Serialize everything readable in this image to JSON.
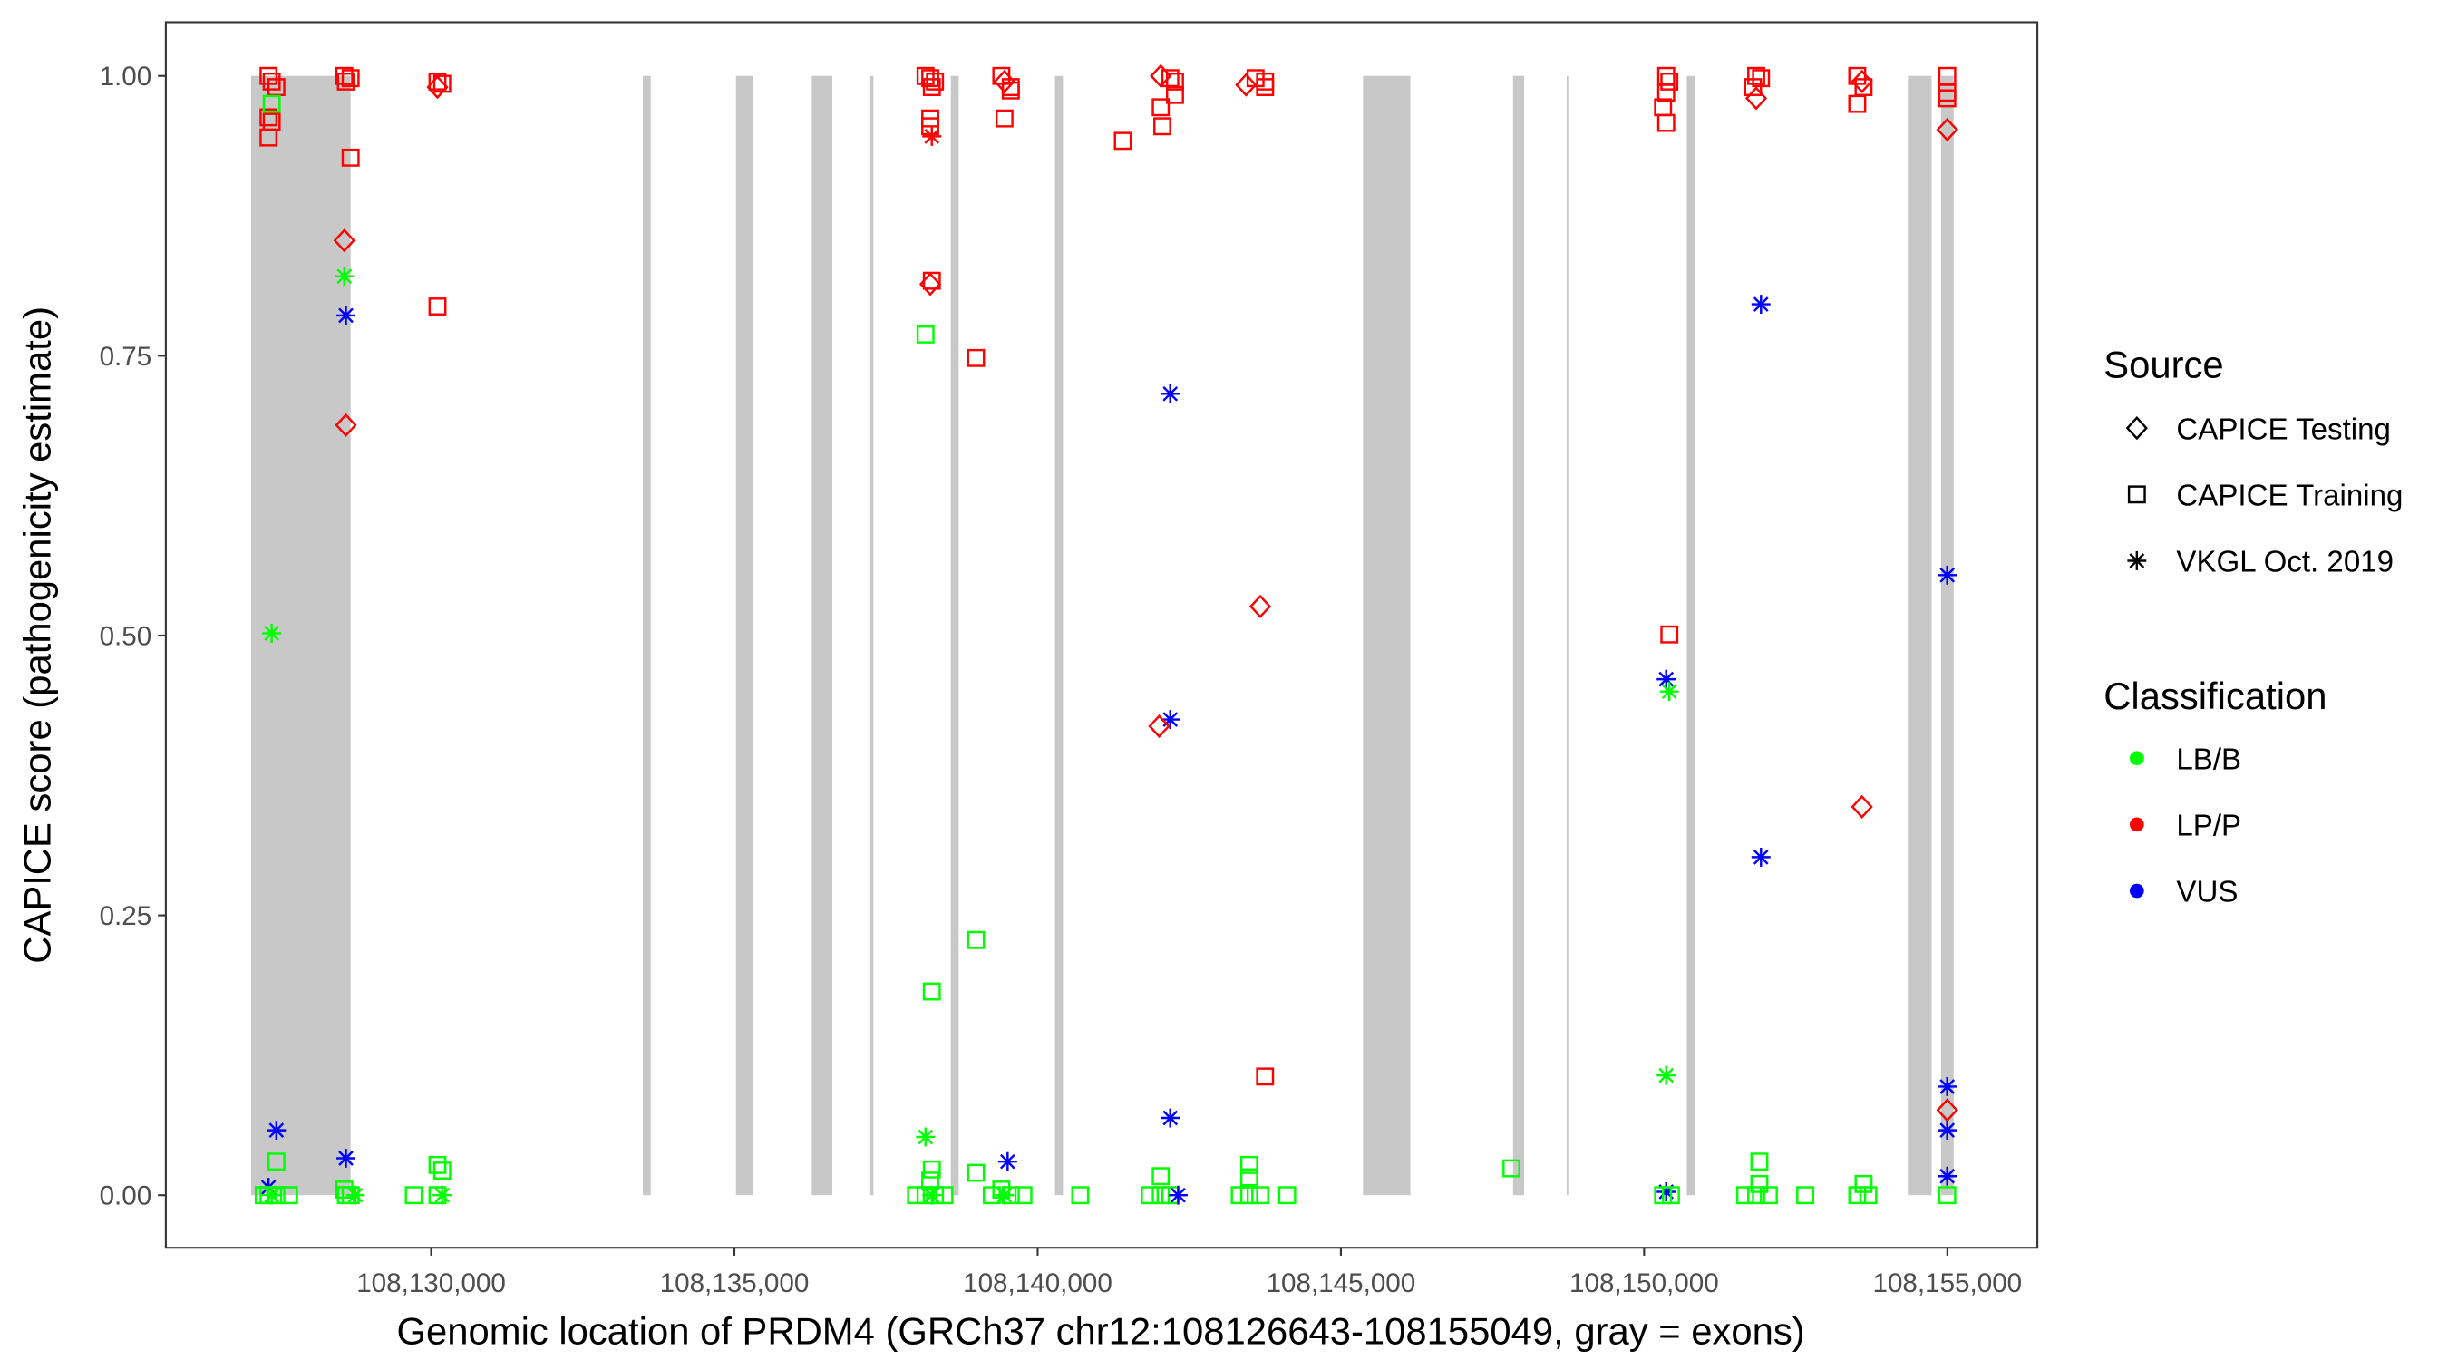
{
  "chart_data": {
    "type": "scatter",
    "xlabel": "Genomic location of PRDM4 (GRCh37 chr12:108126643-108155049, gray = exons)",
    "ylabel": "CAPICE score (pathogenicity estimate)",
    "xlim": [
      108125625,
      108156484
    ],
    "ylim": [
      -0.047,
      1.048
    ],
    "x_ticks": [
      108130000,
      108135000,
      108140000,
      108145000,
      108150000,
      108155000
    ],
    "x_tick_labels": [
      "108,130,000",
      "108,135,000",
      "108,140,000",
      "108,145,000",
      "108,150,000",
      "108,155,000"
    ],
    "y_ticks": [
      0,
      0.25,
      0.5,
      0.75,
      1.0
    ],
    "y_tick_labels": [
      "0.00",
      "0.25",
      "0.50",
      "0.75",
      "1.00"
    ],
    "grid": false,
    "exons": [
      [
        108127031,
        108128672
      ],
      [
        108133490,
        108133620
      ],
      [
        108135026,
        108135313
      ],
      [
        108136276,
        108136615
      ],
      [
        108137240,
        108137292
      ],
      [
        108138568,
        108138698
      ],
      [
        108140286,
        108140417
      ],
      [
        108145365,
        108146146
      ],
      [
        108147839,
        108148021
      ],
      [
        108148724,
        108148750
      ],
      [
        108150703,
        108150833
      ],
      [
        108154349,
        108154740
      ],
      [
        108154896,
        108155104
      ]
    ],
    "exon_color": "#c8c8c8",
    "legend_position": "right",
    "sources": [
      {
        "name": "CAPICE Testing",
        "shape": "diamond"
      },
      {
        "name": "CAPICE Training",
        "shape": "square"
      },
      {
        "name": "VKGL Oct. 2019",
        "shape": "asterisk"
      }
    ],
    "classes": [
      {
        "name": "LB/B",
        "color": "#00ff00"
      },
      {
        "name": "LP/P",
        "color": "#ff0000"
      },
      {
        "name": "VUS",
        "color": "#0000ff"
      }
    ],
    "legend_source_title": "Source",
    "legend_class_title": "Classification",
    "point_fields": [
      "position",
      "score",
      "source_index",
      "class_index"
    ],
    "points": [
      [
        108127318,
        1.0,
        1,
        1
      ],
      [
        108127370,
        0.995,
        1,
        1
      ],
      [
        108127448,
        0.99,
        1,
        1
      ],
      [
        108127318,
        0.963,
        1,
        1
      ],
      [
        108127370,
        0.959,
        1,
        1
      ],
      [
        108127318,
        0.945,
        1,
        1
      ],
      [
        108127370,
        0.975,
        1,
        0
      ],
      [
        108127370,
        0.502,
        2,
        0
      ],
      [
        108127448,
        0.058,
        2,
        2
      ],
      [
        108127448,
        0.03,
        1,
        0
      ],
      [
        108127318,
        0.007,
        2,
        2
      ],
      [
        108127240,
        0.0,
        1,
        0
      ],
      [
        108127318,
        0.0,
        1,
        0
      ],
      [
        108127448,
        0.0,
        1,
        0
      ],
      [
        108127656,
        0.0,
        1,
        0
      ],
      [
        108127370,
        0.0,
        2,
        0
      ],
      [
        108128568,
        1.0,
        1,
        1
      ],
      [
        108128594,
        0.995,
        1,
        1
      ],
      [
        108128672,
        0.998,
        1,
        1
      ],
      [
        108128672,
        0.927,
        1,
        1
      ],
      [
        108128568,
        0.853,
        0,
        1
      ],
      [
        108128568,
        0.821,
        2,
        0
      ],
      [
        108128594,
        0.786,
        2,
        2
      ],
      [
        108128594,
        0.688,
        0,
        1
      ],
      [
        108128594,
        0.033,
        2,
        2
      ],
      [
        108128568,
        0.005,
        1,
        0
      ],
      [
        108128594,
        0.0,
        1,
        0
      ],
      [
        108128672,
        0.0,
        1,
        0
      ],
      [
        108128750,
        0.0,
        2,
        0
      ],
      [
        108130104,
        0.995,
        1,
        1
      ],
      [
        108130104,
        0.99,
        0,
        1
      ],
      [
        108130182,
        0.993,
        1,
        1
      ],
      [
        108130104,
        0.794,
        1,
        1
      ],
      [
        108130104,
        0.027,
        1,
        0
      ],
      [
        108130182,
        0.022,
        1,
        0
      ],
      [
        108129714,
        0.0,
        1,
        0
      ],
      [
        108130104,
        0.0,
        1,
        0
      ],
      [
        108130182,
        0.0,
        2,
        0
      ],
      [
        108138151,
        1.0,
        1,
        1
      ],
      [
        108138229,
        0.998,
        1,
        1
      ],
      [
        108138307,
        0.995,
        1,
        1
      ],
      [
        108138255,
        0.99,
        1,
        1
      ],
      [
        108138229,
        0.962,
        1,
        1
      ],
      [
        108138229,
        0.955,
        1,
        1
      ],
      [
        108138255,
        0.946,
        2,
        1
      ],
      [
        108138229,
        0.814,
        0,
        1
      ],
      [
        108138255,
        0.817,
        1,
        1
      ],
      [
        108138151,
        0.769,
        1,
        0
      ],
      [
        108138255,
        0.182,
        1,
        0
      ],
      [
        108138151,
        0.052,
        2,
        0
      ],
      [
        108138255,
        0.023,
        1,
        0
      ],
      [
        108138229,
        0.013,
        1,
        0
      ],
      [
        108137994,
        0.0,
        1,
        0
      ],
      [
        108138151,
        0.0,
        1,
        0
      ],
      [
        108138255,
        0.0,
        2,
        0
      ],
      [
        108138463,
        0.0,
        1,
        0
      ],
      [
        108138307,
        0.0,
        1,
        0
      ],
      [
        108138984,
        0.748,
        1,
        1
      ],
      [
        108138984,
        0.228,
        1,
        0
      ],
      [
        108138984,
        0.02,
        1,
        0
      ],
      [
        108139401,
        1.0,
        1,
        1
      ],
      [
        108139453,
        0.995,
        0,
        1
      ],
      [
        108139557,
        0.99,
        1,
        1
      ],
      [
        108139557,
        0.987,
        1,
        1
      ],
      [
        108139453,
        0.962,
        1,
        1
      ],
      [
        108139505,
        0.03,
        2,
        2
      ],
      [
        108139401,
        0.005,
        1,
        0
      ],
      [
        108139245,
        0.0,
        1,
        0
      ],
      [
        108139453,
        0.0,
        2,
        0
      ],
      [
        108139557,
        0.0,
        1,
        0
      ],
      [
        108139765,
        0.0,
        1,
        0
      ],
      [
        108140702,
        0.0,
        1,
        0
      ],
      [
        108141405,
        0.942,
        1,
        1
      ],
      [
        108142030,
        1.0,
        0,
        1
      ],
      [
        108142187,
        0.998,
        1,
        1
      ],
      [
        108142265,
        0.995,
        1,
        1
      ],
      [
        108142265,
        0.983,
        1,
        1
      ],
      [
        108142030,
        0.972,
        1,
        1
      ],
      [
        108142056,
        0.955,
        1,
        1
      ],
      [
        108142187,
        0.716,
        2,
        2
      ],
      [
        108142187,
        0.425,
        2,
        2
      ],
      [
        108142004,
        0.419,
        0,
        1
      ],
      [
        108142187,
        0.069,
        2,
        2
      ],
      [
        108142030,
        0.017,
        1,
        0
      ],
      [
        108141848,
        0.0,
        1,
        0
      ],
      [
        108142030,
        0.0,
        1,
        0
      ],
      [
        108142187,
        0.0,
        1,
        0
      ],
      [
        108142317,
        0.0,
        2,
        2
      ],
      [
        108143437,
        0.992,
        0,
        1
      ],
      [
        108143593,
        0.998,
        1,
        1
      ],
      [
        108143750,
        0.995,
        1,
        1
      ],
      [
        108143750,
        0.99,
        1,
        1
      ],
      [
        108143671,
        0.526,
        0,
        1
      ],
      [
        108143750,
        0.106,
        1,
        1
      ],
      [
        108143489,
        0.027,
        1,
        0
      ],
      [
        108143489,
        0.016,
        1,
        0
      ],
      [
        108143333,
        0.0,
        1,
        0
      ],
      [
        108143489,
        0.0,
        1,
        0
      ],
      [
        108143671,
        0.0,
        1,
        0
      ],
      [
        108144114,
        0.0,
        1,
        0
      ],
      [
        108147812,
        0.024,
        1,
        0
      ],
      [
        108150364,
        1.0,
        1,
        1
      ],
      [
        108150416,
        0.995,
        1,
        1
      ],
      [
        108150364,
        0.985,
        1,
        1
      ],
      [
        108150312,
        0.972,
        1,
        1
      ],
      [
        108150364,
        0.958,
        1,
        1
      ],
      [
        108150416,
        0.501,
        1,
        1
      ],
      [
        108150364,
        0.461,
        2,
        2
      ],
      [
        108150416,
        0.45,
        2,
        0
      ],
      [
        108150364,
        0.107,
        2,
        0
      ],
      [
        108150364,
        0.003,
        2,
        2
      ],
      [
        108150312,
        0.0,
        1,
        0
      ],
      [
        108150442,
        0.0,
        1,
        0
      ],
      [
        108151848,
        1.0,
        1,
        1
      ],
      [
        108151927,
        0.998,
        1,
        1
      ],
      [
        108151796,
        0.99,
        1,
        1
      ],
      [
        108151848,
        0.98,
        0,
        1
      ],
      [
        108151927,
        0.796,
        2,
        2
      ],
      [
        108151927,
        0.302,
        2,
        2
      ],
      [
        108151900,
        0.03,
        1,
        0
      ],
      [
        108151900,
        0.01,
        1,
        0
      ],
      [
        108151666,
        0.0,
        1,
        0
      ],
      [
        108151848,
        0.0,
        1,
        0
      ],
      [
        108152057,
        0.0,
        1,
        0
      ],
      [
        108152656,
        0.0,
        1,
        0
      ],
      [
        108153514,
        1.0,
        1,
        1
      ],
      [
        108153592,
        0.995,
        0,
        1
      ],
      [
        108153618,
        0.99,
        1,
        1
      ],
      [
        108153514,
        0.975,
        1,
        1
      ],
      [
        108153592,
        0.347,
        0,
        1
      ],
      [
        108153618,
        0.01,
        1,
        0
      ],
      [
        108153514,
        0.0,
        1,
        0
      ],
      [
        108153696,
        0.0,
        1,
        0
      ],
      [
        108154998,
        1.0,
        1,
        1
      ],
      [
        108154998,
        0.985,
        1,
        1
      ],
      [
        108154998,
        0.98,
        1,
        1
      ],
      [
        108154998,
        0.952,
        0,
        1
      ],
      [
        108154998,
        0.554,
        2,
        2
      ],
      [
        108154998,
        0.097,
        2,
        2
      ],
      [
        108154998,
        0.076,
        0,
        1
      ],
      [
        108154998,
        0.058,
        2,
        2
      ],
      [
        108154998,
        0.017,
        2,
        2
      ],
      [
        108154998,
        0.0,
        1,
        0
      ]
    ]
  }
}
